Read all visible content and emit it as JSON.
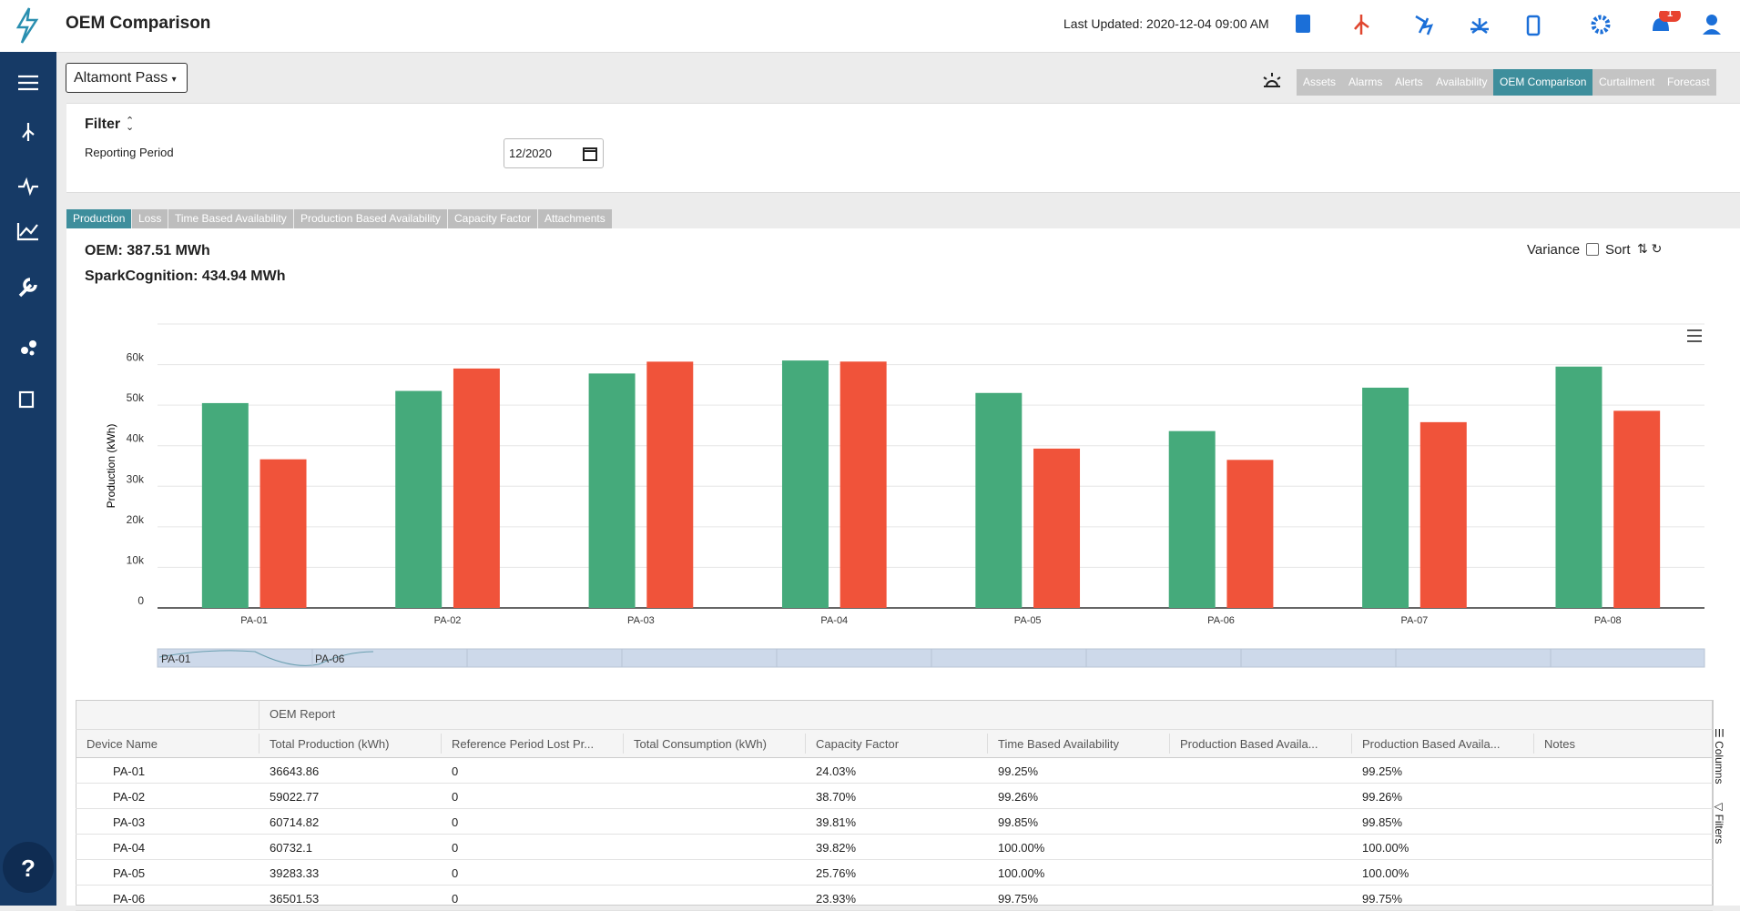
{
  "header": {
    "title": "OEM Comparison",
    "last_updated": "Last Updated: 2020-12-04 09:00 AM",
    "notification_count": "1"
  },
  "location": "Altamont Pass",
  "nav_tabs": {
    "items": [
      "Assets",
      "Alarms",
      "Alerts",
      "Availability",
      "OEM Comparison",
      "Curtailment",
      "Forecast"
    ],
    "active": 4
  },
  "filter": {
    "title": "Filter",
    "label": "Reporting Period",
    "value": "12/2020"
  },
  "chart_tabs": {
    "items": [
      "Production",
      "Loss",
      "Time Based Availability",
      "Production Based Availability",
      "Capacity Factor",
      "Attachments"
    ],
    "active": 0
  },
  "summary": {
    "oem": "OEM: 387.51 MWh",
    "spark": "SparkCognition: 434.94 MWh"
  },
  "controls": {
    "variance": "Variance",
    "sort": "Sort"
  },
  "chart_data": {
    "type": "bar",
    "ylabel": "Production (kWh)",
    "categories": [
      "PA-01",
      "PA-02",
      "PA-03",
      "PA-04",
      "PA-05",
      "PA-06",
      "PA-07",
      "PA-08"
    ],
    "series": [
      {
        "color": "#45aa7b",
        "values": [
          50500,
          53500,
          57800,
          61000,
          53000,
          43600,
          54300,
          59500
        ]
      },
      {
        "color": "#f0533a",
        "values": [
          36643.86,
          59022.77,
          60714.82,
          60732.1,
          39283.33,
          36501.53,
          45800,
          48600
        ]
      }
    ],
    "ylim": [
      0,
      70000
    ],
    "yticks": [
      0,
      {
        "value": 10000,
        "label": "10k"
      },
      {
        "value": 20000,
        "label": "20k"
      },
      {
        "value": 30000,
        "label": "30k"
      },
      {
        "value": 40000,
        "label": "40k"
      },
      {
        "value": 50000,
        "label": "50k"
      },
      {
        "value": 60000,
        "label": "60k"
      }
    ],
    "grid": true
  },
  "navigator": {
    "labels": [
      "PA-01",
      "PA-06"
    ]
  },
  "table": {
    "group_header": "OEM Report",
    "columns": [
      "Device Name",
      "Total Production (kWh)",
      "Reference Period Lost Pr...",
      "Total Consumption (kWh)",
      "Capacity Factor",
      "Time Based Availability",
      "Production Based Availa...",
      "Production Based Availa...",
      "Notes"
    ],
    "rows": [
      [
        "PA-01",
        "36643.86",
        "0",
        null,
        "24.03%",
        "99.25%",
        null,
        "99.25%",
        null
      ],
      [
        "PA-02",
        "59022.77",
        "0",
        null,
        "38.70%",
        "99.26%",
        null,
        "99.26%",
        null
      ],
      [
        "PA-03",
        "60714.82",
        "0",
        null,
        "39.81%",
        "99.85%",
        null,
        "99.85%",
        null
      ],
      [
        "PA-04",
        "60732.1",
        "0",
        null,
        "39.82%",
        "100.00%",
        null,
        "100.00%",
        null
      ],
      [
        "PA-05",
        "39283.33",
        "0",
        null,
        "25.76%",
        "100.00%",
        null,
        "100.00%",
        null
      ],
      [
        "PA-06",
        "36501.53",
        "0",
        null,
        "23.93%",
        "99.75%",
        null,
        "99.75%",
        null
      ]
    ],
    "side_tabs": [
      "Columns",
      "Filters"
    ]
  },
  "help": "?"
}
